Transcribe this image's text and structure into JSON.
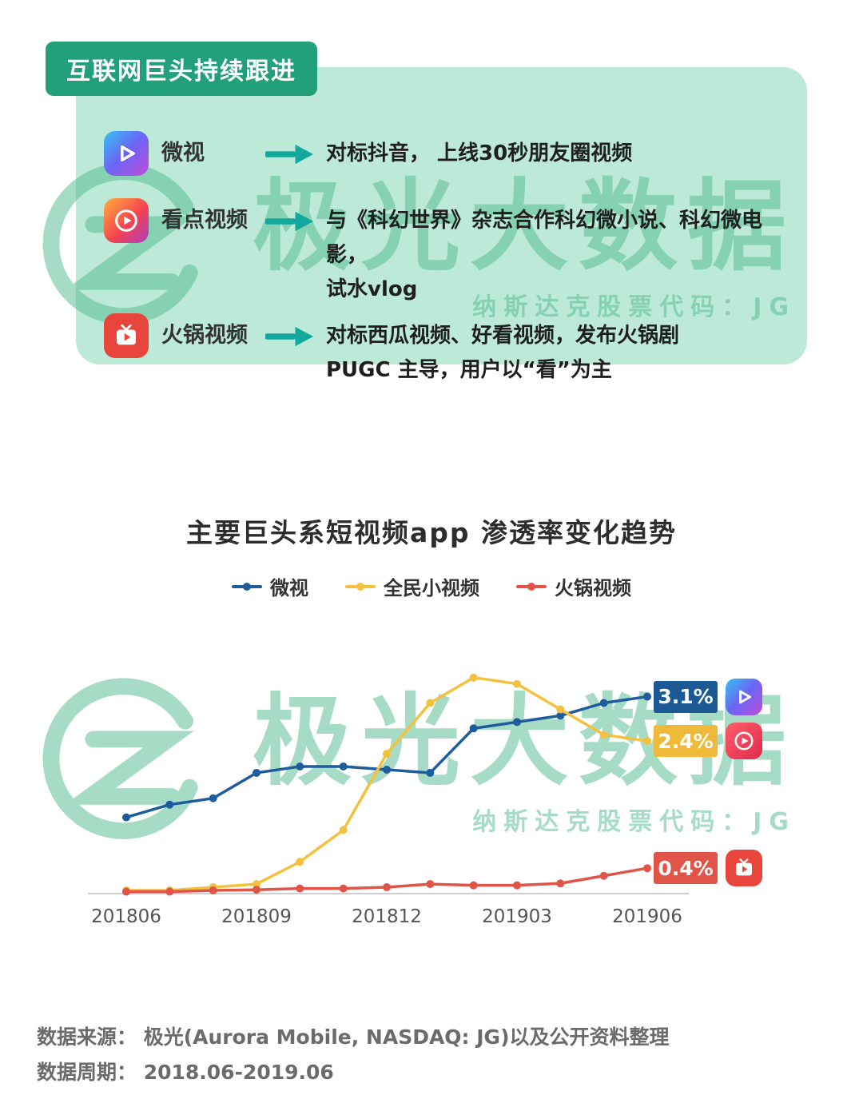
{
  "colors": {
    "header_green": "#21a07a",
    "card_mint": "#bce9d8",
    "arrow_teal": "#13a89e",
    "watermark_green": "#4fba8e"
  },
  "card": {
    "header": "互联网巨头持续跟进",
    "rows": [
      {
        "app": "微视",
        "icon": "weishi-app-icon",
        "desc_lines": [
          "对标抖音， 上线30秒朋友圈视频"
        ]
      },
      {
        "app": "看点视频",
        "icon": "kandian-app-icon",
        "desc_lines": [
          "与《科幻世界》杂志合作科幻微小说、科幻微电影，",
          "试水vlog"
        ]
      },
      {
        "app": "火锅视频",
        "icon": "huoguo-app-icon",
        "desc_lines": [
          "对标西瓜视频、好看视频，发布火锅剧",
          "PUGC 主导，用户以“看”为主"
        ]
      }
    ]
  },
  "watermark": {
    "brand": "极光大数据",
    "subtitle": "纳斯达克股票代码：JG"
  },
  "chart_data": {
    "type": "line",
    "title": "主要巨头系短视频app 渗透率变化趋势",
    "x": [
      "201806",
      "201807",
      "201808",
      "201809",
      "201810",
      "201811",
      "201812",
      "201901",
      "201902",
      "201903",
      "201904",
      "201905",
      "201906"
    ],
    "x_ticks": [
      "201806",
      "201809",
      "201812",
      "201903",
      "201906"
    ],
    "ylim": [
      0,
      4
    ],
    "grid": false,
    "legend_position": "top",
    "series": [
      {
        "name": "微视",
        "color": "#1e5c9e",
        "label_color": "#1b5a94",
        "end_label": "3.1%",
        "icon": "weishi-app-icon",
        "values": [
          1.2,
          1.4,
          1.5,
          1.9,
          2.0,
          2.0,
          1.95,
          1.9,
          2.6,
          2.7,
          2.8,
          3.0,
          3.1
        ]
      },
      {
        "name": "全民小视频",
        "color": "#f3c13d",
        "label_color": "#efb93a",
        "end_label": "2.4%",
        "icon": "quanmin-app-icon",
        "values": [
          0.05,
          0.05,
          0.1,
          0.15,
          0.5,
          1.0,
          2.2,
          3.0,
          3.4,
          3.3,
          2.9,
          2.5,
          2.4
        ]
      },
      {
        "name": "火锅视频",
        "color": "#e05547",
        "label_color": "#e05547",
        "end_label": "0.4%",
        "icon": "huoguo-app-icon",
        "values": [
          0.03,
          0.03,
          0.05,
          0.06,
          0.08,
          0.08,
          0.1,
          0.15,
          0.13,
          0.13,
          0.16,
          0.28,
          0.4
        ]
      }
    ]
  },
  "footer": {
    "source": "数据来源： 极光(Aurora Mobile, NASDAQ: JG)以及公开资料整理",
    "period": "数据周期： 2018.06-2019.06"
  }
}
